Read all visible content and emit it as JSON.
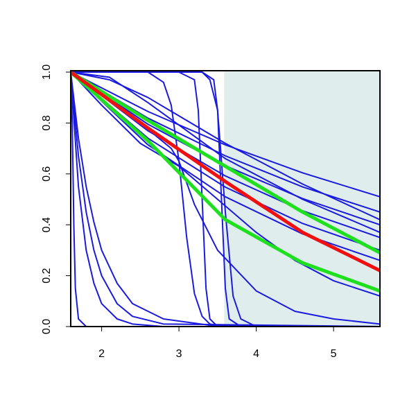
{
  "chart_data": {
    "type": "line",
    "xlim": [
      1.6,
      5.6
    ],
    "ylim": [
      0,
      1
    ],
    "xticks": [
      2,
      3,
      4,
      5
    ],
    "yticks": [
      {
        "value": 0,
        "label": "0.0"
      },
      0.2,
      0.4,
      0.6,
      0.8,
      {
        "value": 1,
        "label": "1.0"
      }
    ],
    "shaded_region": {
      "xlim": [
        3.585,
        5.6
      ],
      "color": "#e0eded"
    },
    "series": [
      {
        "color": "#1a1adf",
        "line_width": 2,
        "x": [
          1.6,
          1.62,
          1.64,
          1.66,
          1.7,
          1.8,
          5.6
        ],
        "values": [
          1,
          0.8,
          0.4,
          0.15,
          0.03,
          0,
          0
        ]
      },
      {
        "color": "#1a1adf",
        "line_width": 2,
        "x": [
          1.6,
          1.7,
          1.8,
          1.9,
          2.0,
          2.2,
          2.4,
          2.8,
          5.6
        ],
        "values": [
          1,
          0.55,
          0.3,
          0.17,
          0.09,
          0.03,
          0.01,
          0,
          0
        ]
      },
      {
        "color": "#1a1adf",
        "line_width": 2,
        "x": [
          1.6,
          1.7,
          1.8,
          1.9,
          2.0,
          2.2,
          2.4,
          2.8,
          5.6
        ],
        "values": [
          1,
          0.67,
          0.45,
          0.3,
          0.2,
          0.09,
          0.04,
          0.01,
          0
        ]
      },
      {
        "color": "#1a1adf",
        "line_width": 2,
        "x": [
          1.6,
          1.7,
          1.8,
          1.9,
          2.0,
          2.2,
          2.4,
          2.8,
          3.4,
          5.6
        ],
        "values": [
          1,
          0.74,
          0.55,
          0.41,
          0.3,
          0.17,
          0.09,
          0.03,
          0.005,
          0
        ]
      },
      {
        "color": "#1a1adf",
        "line_width": 2,
        "x": [
          1.6,
          2.6,
          2.8,
          2.9,
          3.0,
          3.1,
          3.2,
          3.3,
          3.4,
          3.6,
          5.6
        ],
        "values": [
          1,
          1,
          0.96,
          0.87,
          0.65,
          0.35,
          0.13,
          0.04,
          0.01,
          0,
          0
        ]
      },
      {
        "color": "#1a1adf",
        "line_width": 2,
        "x": [
          1.6,
          3.0,
          3.2,
          3.25,
          3.3,
          3.35,
          3.4,
          3.5,
          5.6
        ],
        "values": [
          1,
          1,
          0.97,
          0.85,
          0.5,
          0.15,
          0.03,
          0,
          0
        ]
      },
      {
        "color": "#1a1adf",
        "line_width": 2,
        "x": [
          1.6,
          3.3,
          3.45,
          3.5,
          3.55,
          3.6,
          3.65,
          3.8,
          5.6
        ],
        "values": [
          1,
          1,
          0.97,
          0.85,
          0.5,
          0.15,
          0.03,
          0,
          0
        ]
      },
      {
        "color": "#1a1adf",
        "line_width": 2,
        "x": [
          1.6,
          3.3,
          3.4,
          3.5,
          3.6,
          3.7,
          3.8,
          4.0,
          5.6
        ],
        "values": [
          1,
          1,
          0.97,
          0.85,
          0.45,
          0.12,
          0.03,
          0,
          0
        ]
      },
      {
        "color": "#1a1adf",
        "line_width": 2,
        "x": [
          1.6,
          2.0,
          2.5,
          2.9,
          3.0,
          3.2,
          3.5,
          4.0,
          4.5,
          5.0,
          5.6
        ],
        "values": [
          1,
          0.92,
          0.8,
          0.7,
          0.65,
          0.48,
          0.3,
          0.14,
          0.06,
          0.03,
          0.01
        ]
      },
      {
        "color": "#1a1adf",
        "line_width": 2,
        "x": [
          1.6,
          2.0,
          2.5,
          3.0,
          3.5,
          4.0,
          4.5,
          5.0,
          5.6
        ],
        "values": [
          1,
          0.87,
          0.72,
          0.63,
          0.5,
          0.37,
          0.26,
          0.18,
          0.12
        ]
      },
      {
        "color": "#1a1adf",
        "line_width": 2,
        "x": [
          1.6,
          2.6,
          3.6,
          4.6,
          5.6
        ],
        "values": [
          1,
          0.845,
          0.714,
          0.604,
          0.51
        ]
      },
      {
        "color": "#1a1adf",
        "line_width": 2,
        "x": [
          1.6,
          2.6,
          3.6,
          4.6,
          5.6
        ],
        "values": [
          1,
          0.819,
          0.671,
          0.549,
          0.45
        ]
      },
      {
        "color": "#1a1adf",
        "line_width": 2,
        "x": [
          1.6,
          2.6,
          3.6,
          4.6,
          5.6
        ],
        "values": [
          1,
          0.795,
          0.632,
          0.503,
          0.4
        ]
      },
      {
        "color": "#1a1adf",
        "line_width": 2,
        "x": [
          1.6,
          2.6,
          3.6,
          4.6,
          5.6
        ],
        "values": [
          1,
          0.769,
          0.592,
          0.455,
          0.35
        ]
      },
      {
        "color": "#1a1adf",
        "line_width": 2,
        "x": [
          1.6,
          2.6,
          3.6,
          4.6,
          5.6
        ],
        "values": [
          1,
          0.74,
          0.548,
          0.405,
          0.3
        ]
      },
      {
        "color": "#1a1adf",
        "line_width": 2,
        "x": [
          1.6,
          2.6,
          3.6,
          4.6,
          5.6
        ],
        "values": [
          1,
          0.714,
          0.51,
          0.364,
          0.26
        ]
      },
      {
        "color": "#1a1adf",
        "line_width": 2,
        "x": [
          1.6,
          2.1,
          2.6,
          3.6,
          4.6,
          5.6
        ],
        "values": [
          1,
          0.97,
          0.9,
          0.72,
          0.56,
          0.42
        ]
      },
      {
        "color": "#1a1adf",
        "line_width": 2,
        "x": [
          1.6,
          2.1,
          2.6,
          3.6,
          4.6,
          5.6
        ],
        "values": [
          1,
          0.98,
          0.88,
          0.66,
          0.5,
          0.37
        ]
      },
      {
        "color": "#1fe01f",
        "line_width": 5,
        "x": [
          1.6,
          2.6,
          3.6,
          4.6,
          5.6
        ],
        "values": [
          1,
          0.81,
          0.63,
          0.45,
          0.29
        ]
      },
      {
        "color": "#1fe01f",
        "line_width": 5,
        "x": [
          1.6,
          2.6,
          3.6,
          4.6,
          5.6
        ],
        "values": [
          1,
          0.73,
          0.42,
          0.25,
          0.14
        ]
      },
      {
        "color": "#f01010",
        "line_width": 5,
        "x": [
          1.6,
          2.6,
          3.6,
          4.6,
          5.6
        ],
        "values": [
          1,
          0.78,
          0.57,
          0.37,
          0.22
        ]
      }
    ]
  }
}
